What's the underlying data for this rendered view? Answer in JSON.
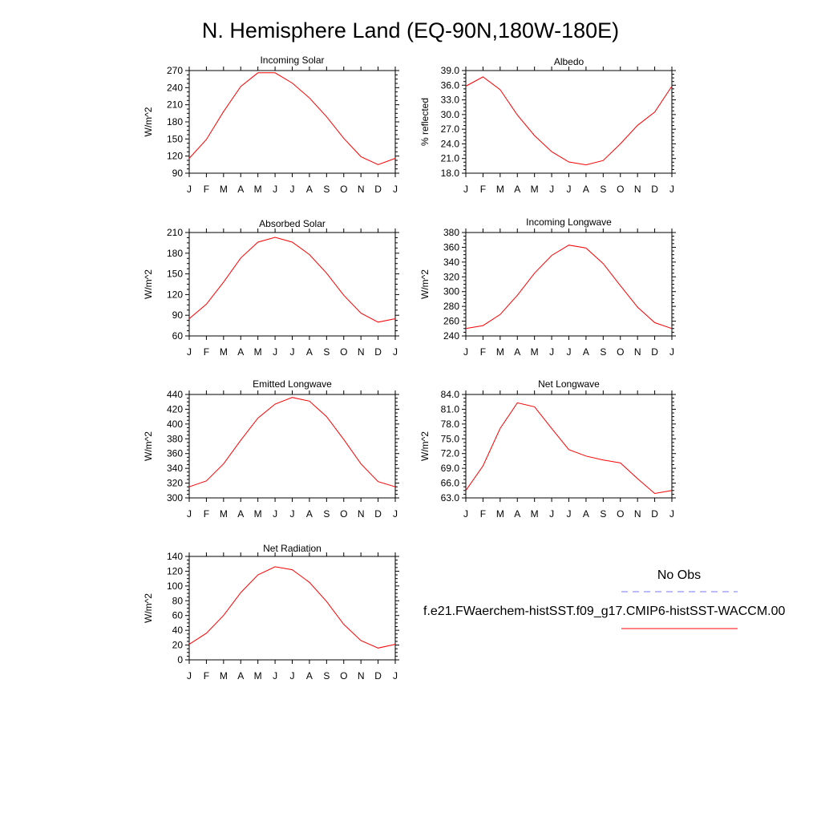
{
  "title": "N. Hemisphere Land (EQ-90N,180W-180E)",
  "months": [
    "J",
    "F",
    "M",
    "A",
    "M",
    "J",
    "J",
    "A",
    "S",
    "O",
    "N",
    "D",
    "J"
  ],
  "legend": {
    "obs_label": "No Obs",
    "obs_color": "#7777ff",
    "model_label": "f.e21.FWaerchem-histSST.f09_g17.CMIP6-histSST-WACCM.00",
    "model_color": "#ff0000"
  },
  "chart_data": [
    {
      "type": "line",
      "title": "Incoming Solar",
      "ylabel": "W/m^2",
      "ylim": [
        90,
        270
      ],
      "yticks": [
        "270",
        "240",
        "210",
        "180",
        "150",
        "120",
        "90"
      ],
      "ytick_values": [
        270,
        240,
        210,
        180,
        150,
        120,
        90
      ],
      "series": [
        {
          "values": [
            116,
            149,
            198,
            242,
            266,
            266,
            248,
            222,
            189,
            151,
            119,
            105,
            116
          ],
          "color": "#ff0000"
        }
      ]
    },
    {
      "type": "line",
      "title": "Albedo",
      "ylabel": "% reflected",
      "ylim": [
        18,
        39
      ],
      "yticks": [
        "39.0",
        "36.0",
        "33.0",
        "30.0",
        "27.0",
        "24.0",
        "21.0",
        "18.0"
      ],
      "ytick_values": [
        39,
        36,
        33,
        30,
        27,
        24,
        21,
        18
      ],
      "series": [
        {
          "values": [
            35.8,
            37.7,
            35.1,
            29.9,
            25.7,
            22.4,
            20.3,
            19.7,
            20.6,
            24.0,
            27.8,
            30.5,
            35.8
          ],
          "color": "#ff0000"
        }
      ]
    },
    {
      "type": "line",
      "title": "Absorbed Solar",
      "ylabel": "W/m^2",
      "ylim": [
        60,
        210
      ],
      "yticks": [
        "210",
        "180",
        "150",
        "120",
        "90",
        "60"
      ],
      "ytick_values": [
        210,
        180,
        150,
        120,
        90,
        60
      ],
      "series": [
        {
          "values": [
            85,
            106,
            138,
            173,
            196,
            203,
            196,
            178,
            151,
            119,
            93,
            80,
            85
          ],
          "color": "#ff0000"
        }
      ]
    },
    {
      "type": "line",
      "title": "Incoming Longwave",
      "ylabel": "W/m^2",
      "ylim": [
        240,
        380
      ],
      "yticks": [
        "380",
        "360",
        "340",
        "320",
        "300",
        "280",
        "260",
        "240"
      ],
      "ytick_values": [
        380,
        360,
        340,
        320,
        300,
        280,
        260,
        240
      ],
      "series": [
        {
          "values": [
            250,
            254,
            269,
            295,
            325,
            349,
            363,
            359,
            338,
            308,
            279,
            258,
            250
          ],
          "color": "#ff0000"
        }
      ]
    },
    {
      "type": "line",
      "title": "Emitted Longwave",
      "ylabel": "W/m^2",
      "ylim": [
        300,
        440
      ],
      "yticks": [
        "440",
        "420",
        "400",
        "380",
        "360",
        "340",
        "320",
        "300"
      ],
      "ytick_values": [
        440,
        420,
        400,
        380,
        360,
        340,
        320,
        300
      ],
      "series": [
        {
          "values": [
            315,
            323,
            346,
            378,
            408,
            427,
            436,
            431,
            410,
            379,
            346,
            322,
            315
          ],
          "color": "#ff0000"
        }
      ]
    },
    {
      "type": "line",
      "title": "Net Longwave",
      "ylabel": "W/m^2",
      "ylim": [
        63,
        84
      ],
      "yticks": [
        "84.0",
        "81.0",
        "78.0",
        "75.0",
        "72.0",
        "69.0",
        "66.0",
        "63.0"
      ],
      "ytick_values": [
        84,
        81,
        78,
        75,
        72,
        69,
        66,
        63
      ],
      "series": [
        {
          "values": [
            64.5,
            69.5,
            77.1,
            82.3,
            81.5,
            77.1,
            72.8,
            71.5,
            70.7,
            70.1,
            66.9,
            63.9,
            64.5
          ],
          "color": "#ff0000"
        }
      ]
    },
    {
      "type": "line",
      "title": "Net Radiation",
      "ylabel": "W/m^2",
      "ylim": [
        0,
        140
      ],
      "yticks": [
        "140",
        "120",
        "100",
        "80",
        "60",
        "40",
        "20",
        "0"
      ],
      "ytick_values": [
        140,
        120,
        100,
        80,
        60,
        40,
        20,
        0
      ],
      "series": [
        {
          "values": [
            21,
            36,
            60,
            91,
            115,
            126,
            122,
            105,
            79,
            48,
            26,
            16,
            21
          ],
          "color": "#ff0000"
        }
      ]
    }
  ]
}
